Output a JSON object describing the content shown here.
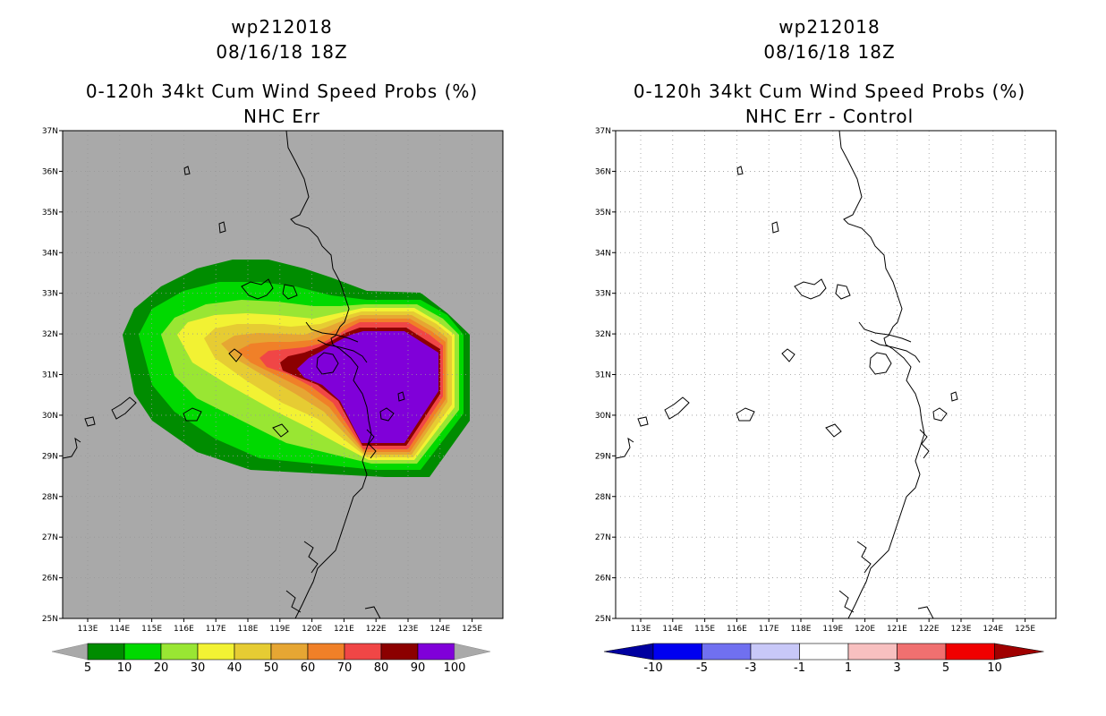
{
  "left_panel": {
    "title_line1": "wp212018",
    "title_line2": "08/16/18 18Z",
    "title_line3": "0-120h 34kt Cum Wind Speed Probs (%)",
    "title_line4": "NHC Err",
    "background_color": "#a9a9a9",
    "colorbar": {
      "labels": [
        "5",
        "10",
        "20",
        "30",
        "40",
        "50",
        "60",
        "70",
        "80",
        "90",
        "100"
      ],
      "colors": [
        "#008c00",
        "#00d900",
        "#99e633",
        "#f2f233",
        "#e6cc33",
        "#e6a633",
        "#f08028",
        "#f04646",
        "#8c0000",
        "#8000d9"
      ]
    }
  },
  "right_panel": {
    "title_line1": "wp212018",
    "title_line2": "08/16/18 18Z",
    "title_line3": "0-120h 34kt Cum Wind Speed Probs (%)",
    "title_line4": "NHC Err - Control",
    "background_color": "#ffffff",
    "colorbar": {
      "labels": [
        "-10",
        "-5",
        "-3",
        "-1",
        "1",
        "3",
        "5",
        "10"
      ],
      "colors": [
        "#0000a0",
        "#0000f0",
        "#7070f0",
        "#c8c8f8",
        "#ffffff",
        "#f8c0c0",
        "#f07070",
        "#f00000",
        "#a00000"
      ]
    }
  },
  "map_axes": {
    "lat_labels": [
      "37N",
      "36N",
      "35N",
      "34N",
      "33N",
      "32N",
      "31N",
      "30N",
      "29N",
      "28N",
      "27N",
      "26N",
      "25N"
    ],
    "lon_labels": [
      "113E",
      "114E",
      "115E",
      "116E",
      "117E",
      "118E",
      "119E",
      "120E",
      "121E",
      "122E",
      "123E",
      "124E",
      "125E"
    ]
  }
}
